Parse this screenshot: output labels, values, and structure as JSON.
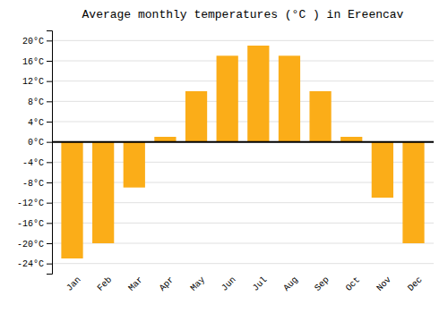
{
  "chart_data": {
    "type": "bar",
    "title": "Average monthly temperatures (°C ) in Ereencav",
    "categories": [
      "Jan",
      "Feb",
      "Mar",
      "Apr",
      "May",
      "Jun",
      "Jul",
      "Aug",
      "Sep",
      "Oct",
      "Nov",
      "Dec"
    ],
    "values": [
      -23,
      -20,
      -9,
      1,
      10,
      17,
      19,
      17,
      10,
      1,
      -11,
      -20
    ],
    "color": "#FBAD18",
    "ylim": [
      -26,
      22
    ],
    "yticks": [
      {
        "value": -24,
        "label": "-24°C"
      },
      {
        "value": -20,
        "label": "-20°C"
      },
      {
        "value": -16,
        "label": "-16°C"
      },
      {
        "value": -12,
        "label": "-12°C"
      },
      {
        "value": -8,
        "label": "-8°C"
      },
      {
        "value": -4,
        "label": "-4°C"
      },
      {
        "value": 0,
        "label": "0°C"
      },
      {
        "value": 4,
        "label": "4°C"
      },
      {
        "value": 8,
        "label": "8°C"
      },
      {
        "value": 12,
        "label": "12°C"
      },
      {
        "value": 16,
        "label": "16°C"
      },
      {
        "value": 20,
        "label": "20°C"
      }
    ],
    "grid": true
  }
}
